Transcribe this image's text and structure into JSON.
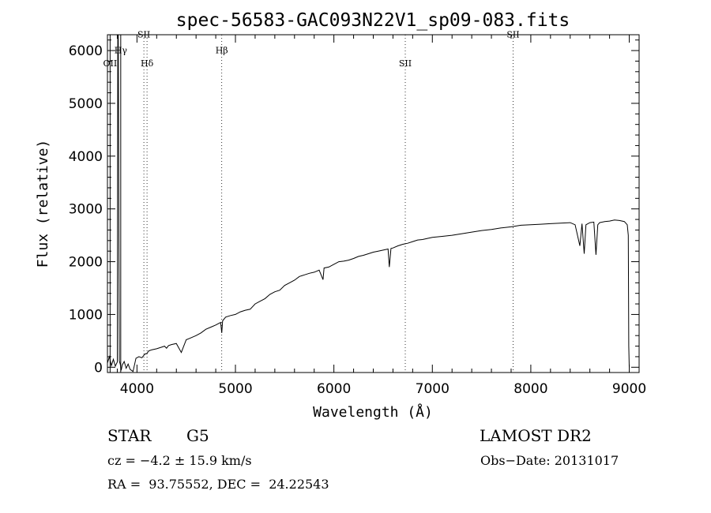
{
  "chart_data": {
    "type": "line",
    "title": "spec-56583-GAC093N22V1_sp09-083.fits",
    "xlabel": "Wavelength (Å)",
    "ylabel": "Flux (relative)",
    "xlim": [
      3700,
      9100
    ],
    "ylim": [
      -100,
      6300
    ],
    "x_ticks": [
      4000,
      5000,
      6000,
      7000,
      8000,
      9000
    ],
    "y_ticks": [
      0,
      1000,
      2000,
      3000,
      4000,
      5000,
      6000
    ],
    "grid": false,
    "series": [
      {
        "x": [
          3700,
          3720,
          3740,
          3760,
          3780,
          3800,
          3805,
          3810,
          3820,
          3830,
          3840,
          3850,
          3870,
          3890,
          3910,
          3930,
          3960,
          3990,
          4020,
          4050,
          4080,
          4100,
          4120,
          4150,
          4200,
          4250,
          4280,
          4300,
          4320,
          4350,
          4400,
          4450,
          4500,
          4550,
          4600,
          4650,
          4700,
          4750,
          4800,
          4850,
          4861,
          4870,
          4900,
          4950,
          5000,
          5050,
          5100,
          5150,
          5200,
          5250,
          5300,
          5350,
          5400,
          5450,
          5500,
          5550,
          5600,
          5650,
          5700,
          5750,
          5800,
          5850,
          5890,
          5900,
          5950,
          6000,
          6050,
          6100,
          6150,
          6200,
          6250,
          6300,
          6350,
          6400,
          6450,
          6500,
          6550,
          6563,
          6580,
          6600,
          6650,
          6700,
          6750,
          6800,
          6850,
          6900,
          6950,
          7000,
          7100,
          7200,
          7300,
          7400,
          7500,
          7600,
          7700,
          7800,
          7900,
          8000,
          8100,
          8200,
          8300,
          8400,
          8450,
          8498,
          8520,
          8542,
          8560,
          8600,
          8640,
          8662,
          8680,
          8700,
          8750,
          8800,
          8850,
          8900,
          8950,
          8980,
          8990,
          8995,
          9000
        ],
        "y": [
          80,
          200,
          30,
          150,
          20,
          100,
          6300,
          6300,
          120,
          60,
          -60,
          40,
          110,
          -20,
          60,
          -40,
          -80,
          170,
          200,
          180,
          250,
          260,
          310,
          330,
          350,
          380,
          400,
          360,
          410,
          430,
          450,
          280,
          520,
          560,
          600,
          650,
          720,
          760,
          800,
          850,
          650,
          880,
          950,
          980,
          1000,
          1050,
          1080,
          1100,
          1200,
          1250,
          1300,
          1380,
          1430,
          1460,
          1550,
          1600,
          1650,
          1720,
          1750,
          1780,
          1800,
          1840,
          1660,
          1880,
          1900,
          1950,
          2000,
          2010,
          2030,
          2060,
          2100,
          2120,
          2150,
          2180,
          2200,
          2220,
          2240,
          1900,
          2250,
          2260,
          2300,
          2330,
          2350,
          2380,
          2410,
          2420,
          2440,
          2460,
          2480,
          2500,
          2530,
          2560,
          2590,
          2610,
          2640,
          2660,
          2690,
          2700,
          2710,
          2720,
          2730,
          2740,
          2700,
          2300,
          2720,
          2150,
          2700,
          2740,
          2750,
          2130,
          2700,
          2740,
          2760,
          2770,
          2790,
          2780,
          2760,
          2700,
          2500,
          400,
          0
        ],
        "color": "#000000"
      }
    ],
    "line_markers": [
      {
        "label": "OII",
        "x": 3727,
        "style": "solid",
        "label_y": 5700
      },
      {
        "label": "Hγ",
        "x": 3835,
        "style": "solid",
        "label_y": 5950
      },
      {
        "label": "SII",
        "x": 4070,
        "style": "dotted",
        "label_y": 6250
      },
      {
        "label": "Hδ",
        "x": 4102,
        "style": "dotted",
        "label_y": 5700
      },
      {
        "label": "Hβ",
        "x": 4861,
        "style": "dotted",
        "label_y": 5950
      },
      {
        "label": "SII",
        "x": 6725,
        "style": "dotted",
        "label_y": 5700
      },
      {
        "label": "SII",
        "x": 7820,
        "style": "dotted",
        "label_y": 6250
      }
    ]
  },
  "info": {
    "object_class": "STAR",
    "subclass": "G5",
    "survey": "LAMOST DR2",
    "cz": "cz = −4.2 ± 15.9 km/s",
    "obs_date": "Obs−Date: 20131017",
    "coords": "RA =  93.75552, DEC =  24.22543"
  }
}
